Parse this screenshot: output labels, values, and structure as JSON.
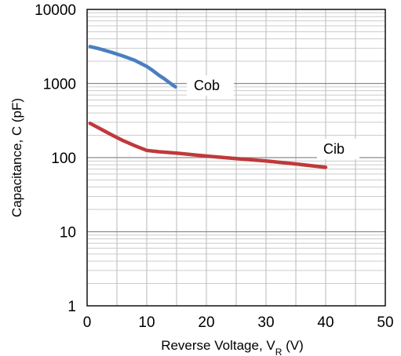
{
  "chart_data": {
    "type": "line",
    "xlabel_main": "Reverse Voltage, V",
    "xlabel_sub": "R",
    "xlabel_unit": " (V)",
    "ylabel": "Capacitance, C (pF)",
    "x_ticks": [
      "0",
      "10",
      "20",
      "30",
      "40",
      "50"
    ],
    "y_ticks": [
      "1",
      "10",
      "100",
      "1000",
      "10000"
    ],
    "xlim": [
      0,
      50
    ],
    "ylim": [
      1,
      10000
    ],
    "y_scale": "log",
    "grid": true,
    "series": [
      {
        "name": "Cob",
        "color": "#4a7fc1",
        "x": [
          0.5,
          2,
          4,
          6,
          8,
          10,
          11,
          12,
          13,
          14,
          14.8
        ],
        "y": [
          3150,
          2950,
          2650,
          2350,
          2050,
          1700,
          1500,
          1300,
          1150,
          1000,
          900
        ]
      },
      {
        "name": "Cib",
        "color": "#c0393b",
        "x": [
          0.5,
          2,
          4,
          6,
          8,
          10,
          12,
          15,
          20,
          25,
          30,
          35,
          40
        ],
        "y": [
          290,
          250,
          205,
          170,
          145,
          125,
          120,
          115,
          105,
          97,
          90,
          82,
          74
        ]
      }
    ]
  }
}
